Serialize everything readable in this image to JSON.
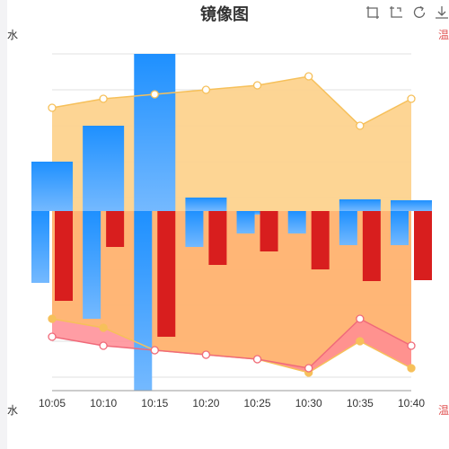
{
  "chart_data": {
    "type": "bar+area+line",
    "title": "镜像图",
    "edge_labels": {
      "top_left": "水",
      "bottom_left": "水",
      "top_right": "温",
      "bottom_right": "温"
    },
    "categories": [
      "10:05",
      "10:10",
      "10:15",
      "10:20",
      "10:25",
      "10:30",
      "10:35",
      "10:40"
    ],
    "bars_blue": {
      "color_top": "#1e90ff",
      "color_bottom": "#74b9ff",
      "values": [
        55,
        95,
        175,
        15,
        -4,
        0,
        13,
        12
      ],
      "lows": [
        -80,
        -120,
        -200,
        -40,
        -25,
        -25,
        -38,
        -38
      ]
    },
    "bars_red": {
      "color": "#d81e1e",
      "values": [
        -100,
        -40,
        -140,
        -60,
        -45,
        -65,
        -78,
        -77
      ]
    },
    "area_top_series": {
      "color": "#f6c05a",
      "fill": "#fdd38e",
      "values": [
        115,
        125,
        130,
        135,
        140,
        150,
        95,
        125
      ]
    },
    "area_bottom_series_orange": {
      "color": "#f6c05a",
      "fill": "#ffb26f",
      "values": [
        -120,
        -130,
        -155,
        -160,
        -165,
        -180,
        -145,
        -175
      ]
    },
    "area_bottom_series_red": {
      "color": "#f06a7a",
      "fill": "#ff8c94",
      "values": [
        -140,
        -150,
        -155,
        -160,
        -165,
        -175,
        -120,
        -150
      ]
    },
    "y_range": [
      -200,
      175
    ],
    "grid": true
  },
  "toolbox": {
    "icons": [
      "zoom-icon",
      "zoom-reset-icon",
      "restore-icon",
      "download-icon"
    ]
  }
}
